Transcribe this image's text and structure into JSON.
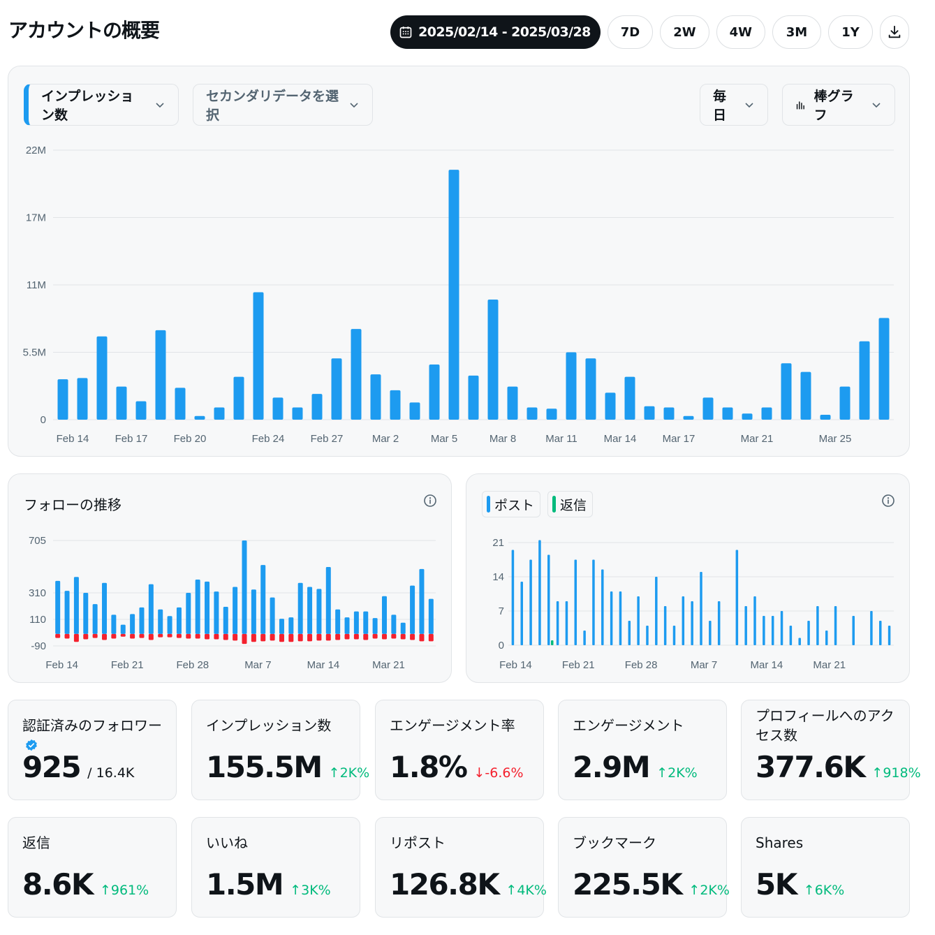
{
  "header": {
    "title": "アカウントの概要",
    "date_range": "2025/02/14 - 2025/03/28",
    "ranges": [
      "7D",
      "2W",
      "4W",
      "3M",
      "1Y"
    ]
  },
  "controls": {
    "primary_metric": "インプレッション数",
    "secondary_metric": "セカンダリデータを選択",
    "interval": "毎日",
    "chart_type": "棒グラフ"
  },
  "follows": {
    "title": "フォローの推移"
  },
  "posts": {
    "legend_posts": "ポスト",
    "legend_replies": "返信"
  },
  "colors": {
    "blue": "#1d9bf0",
    "red": "#f4212e",
    "green": "#00ba7c"
  },
  "stats": [
    {
      "label": "認証済みのフォロワー",
      "value": "925",
      "sub": "/ 16.4K",
      "delta": "",
      "dir": ""
    },
    {
      "label": "インプレッション数",
      "value": "155.5M",
      "sub": "",
      "delta": "2K%",
      "dir": "up"
    },
    {
      "label": "エンゲージメント率",
      "value": "1.8%",
      "sub": "",
      "delta": "-6.6%",
      "dir": "down"
    },
    {
      "label": "エンゲージメント",
      "value": "2.9M",
      "sub": "",
      "delta": "2K%",
      "dir": "up"
    },
    {
      "label": "プロフィールへのアクセス数",
      "value": "377.6K",
      "sub": "",
      "delta": "918%",
      "dir": "up"
    },
    {
      "label": "返信",
      "value": "8.6K",
      "sub": "",
      "delta": "961%",
      "dir": "up"
    },
    {
      "label": "いいね",
      "value": "1.5M",
      "sub": "",
      "delta": "3K%",
      "dir": "up"
    },
    {
      "label": "リポスト",
      "value": "126.8K",
      "sub": "",
      "delta": "4K%",
      "dir": "up"
    },
    {
      "label": "ブックマーク",
      "value": "225.5K",
      "sub": "",
      "delta": "2K%",
      "dir": "up"
    },
    {
      "label": "Shares",
      "value": "5K",
      "sub": "",
      "delta": "6K%",
      "dir": "up"
    }
  ],
  "chart_data": [
    {
      "type": "bar",
      "ylim": [
        0,
        22
      ],
      "yticks": [
        "0",
        "5.5M",
        "11M",
        "17M",
        "22M"
      ],
      "ytick_values": [
        0,
        5.5,
        11,
        16.5,
        22
      ],
      "xtick_labels": [
        "Feb 14",
        "Feb 17",
        "Feb 20",
        "Feb 24",
        "Feb 27",
        "Mar 2",
        "Mar 5",
        "Mar 8",
        "Mar 11",
        "Mar 14",
        "Mar 17",
        "Mar 21",
        "Mar 25"
      ],
      "xtick_index": [
        0,
        3,
        6,
        10,
        13,
        16,
        19,
        22,
        25,
        28,
        31,
        35,
        39
      ],
      "values": [
        3.3,
        3.4,
        6.8,
        2.7,
        1.5,
        7.3,
        2.6,
        0.3,
        1.0,
        3.5,
        10.4,
        1.8,
        1.0,
        2.1,
        5.0,
        7.4,
        3.7,
        2.4,
        1.4,
        4.5,
        20.4,
        3.6,
        9.8,
        2.7,
        1.0,
        0.9,
        5.5,
        5.0,
        2.2,
        3.5,
        1.1,
        1.0,
        0.3,
        1.8,
        1.0,
        0.5,
        1.0,
        4.6,
        3.9,
        0.4,
        2.7,
        6.4,
        8.3
      ]
    },
    {
      "type": "bar",
      "ylim": [
        -90,
        705
      ],
      "yticks": [
        "-90",
        "110",
        "310",
        "705"
      ],
      "ytick_values": [
        -90,
        110,
        310,
        705
      ],
      "xtick_labels": [
        "Feb 14",
        "Feb 21",
        "Feb 28",
        "Mar 7",
        "Mar 14",
        "Mar 21"
      ],
      "xtick_index": [
        0,
        7,
        14,
        21,
        28,
        35
      ],
      "series": [
        {
          "values": [
            400,
            325,
            430,
            310,
            225,
            385,
            145,
            70,
            150,
            200,
            375,
            185,
            135,
            200,
            310,
            410,
            395,
            320,
            205,
            355,
            705,
            335,
            520,
            275,
            115,
            125,
            385,
            355,
            340,
            505,
            185,
            125,
            170,
            170,
            120,
            285,
            145,
            85,
            365,
            490,
            265
          ]
        },
        {
          "values": [
            -30,
            -35,
            -60,
            -40,
            -30,
            -45,
            -35,
            -20,
            -35,
            -30,
            -45,
            -25,
            -25,
            -30,
            -35,
            -35,
            -40,
            -40,
            -45,
            -50,
            -75,
            -60,
            -55,
            -50,
            -60,
            -60,
            -55,
            -55,
            -50,
            -50,
            -45,
            -40,
            -40,
            -45,
            -35,
            -40,
            -35,
            -40,
            -45,
            -55,
            -55
          ]
        }
      ]
    },
    {
      "type": "bar",
      "ylim": [
        0,
        21
      ],
      "yticks": [
        "0",
        "7",
        "14",
        "21"
      ],
      "ytick_values": [
        0,
        7,
        14,
        21
      ],
      "xtick_labels": [
        "Feb 14",
        "Feb 21",
        "Feb 28",
        "Mar 7",
        "Mar 14",
        "Mar 21"
      ],
      "xtick_index": [
        0,
        7,
        14,
        21,
        28,
        35
      ],
      "series": [
        {
          "name": "ポスト",
          "values": [
            19.5,
            13,
            17.5,
            21.5,
            18.5,
            9,
            9,
            17.5,
            3,
            17.5,
            15.5,
            11,
            11,
            5,
            10,
            4,
            14,
            8,
            4,
            10,
            9,
            15,
            5,
            9,
            0,
            19.5,
            8,
            10,
            6,
            6,
            7,
            4,
            1.5,
            5,
            8,
            3,
            8,
            0,
            6,
            0,
            7,
            5,
            4
          ]
        },
        {
          "name": "返信",
          "values": [
            0,
            0,
            0,
            0,
            1,
            0,
            0,
            0,
            0,
            0,
            0,
            0,
            0,
            0,
            0,
            0,
            0,
            0,
            0,
            0,
            0,
            0,
            0,
            0,
            0,
            0,
            0,
            0,
            0,
            0,
            0,
            0,
            0,
            0,
            0,
            0,
            0,
            0,
            0,
            0,
            0,
            0,
            0
          ]
        }
      ]
    }
  ]
}
